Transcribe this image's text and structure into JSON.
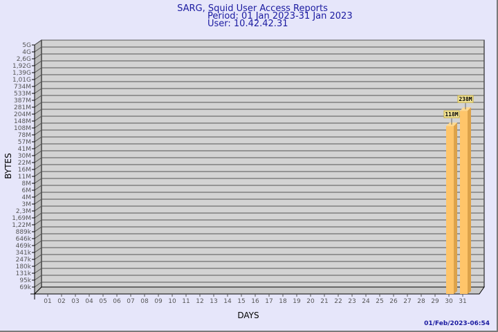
{
  "chart_data": {
    "type": "bar",
    "title": "SARG, Squid User Access Reports",
    "subtitle": [
      "Period: 01 Jan 2023-31 Jan 2023",
      "User: 10.42.42.31"
    ],
    "xlabel": "DAYS",
    "ylabel": "BYTES",
    "y_scale": "log",
    "grid": true,
    "categories": [
      "01",
      "02",
      "03",
      "04",
      "05",
      "06",
      "07",
      "08",
      "09",
      "10",
      "11",
      "12",
      "13",
      "14",
      "15",
      "16",
      "17",
      "18",
      "19",
      "20",
      "21",
      "22",
      "23",
      "24",
      "25",
      "26",
      "27",
      "28",
      "29",
      "30",
      "31"
    ],
    "values": [
      0,
      0,
      0,
      0,
      0,
      0,
      0,
      0,
      0,
      0,
      0,
      0,
      0,
      0,
      0,
      0,
      0,
      0,
      0,
      0,
      0,
      0,
      0,
      0,
      0,
      0,
      0,
      0,
      0,
      118000000,
      238000000
    ],
    "data_labels": {
      "30": "118M",
      "31": "238M"
    },
    "y_ticks": [
      "5G",
      "4G",
      "2,6G",
      "1,92G",
      "1,39G",
      "1,01G",
      "734M",
      "533M",
      "387M",
      "281M",
      "204M",
      "148M",
      "108M",
      "78M",
      "57M",
      "41M",
      "30M",
      "22M",
      "16M",
      "11M",
      "8M",
      "6M",
      "4M",
      "3M",
      "2,3M",
      "1,69M",
      "1,22M",
      "889k",
      "646k",
      "469k",
      "341k",
      "247k",
      "180k",
      "131k",
      "95k",
      "69k"
    ],
    "y_tick_values": [
      5000000000.0,
      4000000000.0,
      2600000000.0,
      1920000000.0,
      1390000000.0,
      1010000000.0,
      734000000.0,
      533000000.0,
      387000000.0,
      281000000.0,
      204000000.0,
      148000000.0,
      108000000.0,
      78000000.0,
      57000000.0,
      41000000.0,
      30000000.0,
      22000000.0,
      16000000.0,
      11000000.0,
      8000000.0,
      6000000.0,
      4000000.0,
      3000000.0,
      2300000.0,
      1690000.0,
      1220000.0,
      889000.0,
      646000.0,
      469000.0,
      341000.0,
      247000.0,
      180000.0,
      131000.0,
      95000.0,
      69000.0
    ],
    "colors": {
      "bar_front": "#ffc56a",
      "bar_side": "#dca24a",
      "wall": "#d3d3d3",
      "title": "#1a1aa0",
      "background": "#e6e6fa"
    }
  },
  "timestamp": "01/Feb/2023-06:54"
}
